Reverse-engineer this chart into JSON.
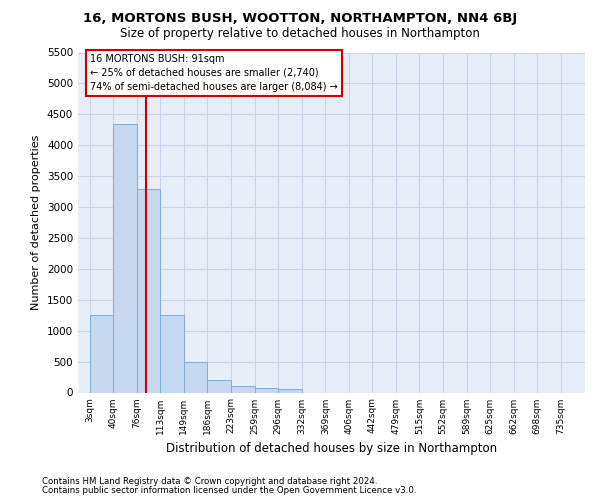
{
  "title": "16, MORTONS BUSH, WOOTTON, NORTHAMPTON, NN4 6BJ",
  "subtitle": "Size of property relative to detached houses in Northampton",
  "xlabel": "Distribution of detached houses by size in Northampton",
  "ylabel": "Number of detached properties",
  "footnote1": "Contains HM Land Registry data © Crown copyright and database right 2024.",
  "footnote2": "Contains public sector information licensed under the Open Government Licence v3.0.",
  "annotation_line1": "16 MORTONS BUSH: 91sqm",
  "annotation_line2": "← 25% of detached houses are smaller (2,740)",
  "annotation_line3": "74% of semi-detached houses are larger (8,084) →",
  "bar_color": "#c5d8f0",
  "bar_edge_color": "#7bafd4",
  "red_line_color": "#cc0000",
  "red_line_x": 91,
  "annotation_box_edgecolor": "#cc0000",
  "grid_color": "#c8d4e8",
  "background_color": "#e8eef8",
  "categories": [
    3,
    40,
    76,
    113,
    149,
    186,
    223,
    259,
    296,
    332,
    369,
    406,
    442,
    479,
    515,
    552,
    589,
    625,
    662,
    698,
    735
  ],
  "bar_heights": [
    1250,
    4350,
    3300,
    1250,
    500,
    200,
    100,
    75,
    50,
    0,
    0,
    0,
    0,
    0,
    0,
    0,
    0,
    0,
    0,
    0,
    0
  ],
  "bin_width": 37,
  "ylim": [
    0,
    5500
  ],
  "yticks": [
    0,
    500,
    1000,
    1500,
    2000,
    2500,
    3000,
    3500,
    4000,
    4500,
    5000,
    5500
  ],
  "xlim_left": -15,
  "xlim_right": 772,
  "tick_labels": [
    "3sqm",
    "40sqm",
    "76sqm",
    "113sqm",
    "149sqm",
    "186sqm",
    "223sqm",
    "259sqm",
    "296sqm",
    "332sqm",
    "369sqm",
    "406sqm",
    "442sqm",
    "479sqm",
    "515sqm",
    "552sqm",
    "589sqm",
    "625sqm",
    "662sqm",
    "698sqm",
    "735sqm"
  ],
  "title_fontsize": 9.5,
  "subtitle_fontsize": 8.5,
  "ylabel_fontsize": 8,
  "xlabel_fontsize": 8.5,
  "ytick_fontsize": 7.5,
  "xtick_fontsize": 6.5,
  "footnote_fontsize": 6.2
}
